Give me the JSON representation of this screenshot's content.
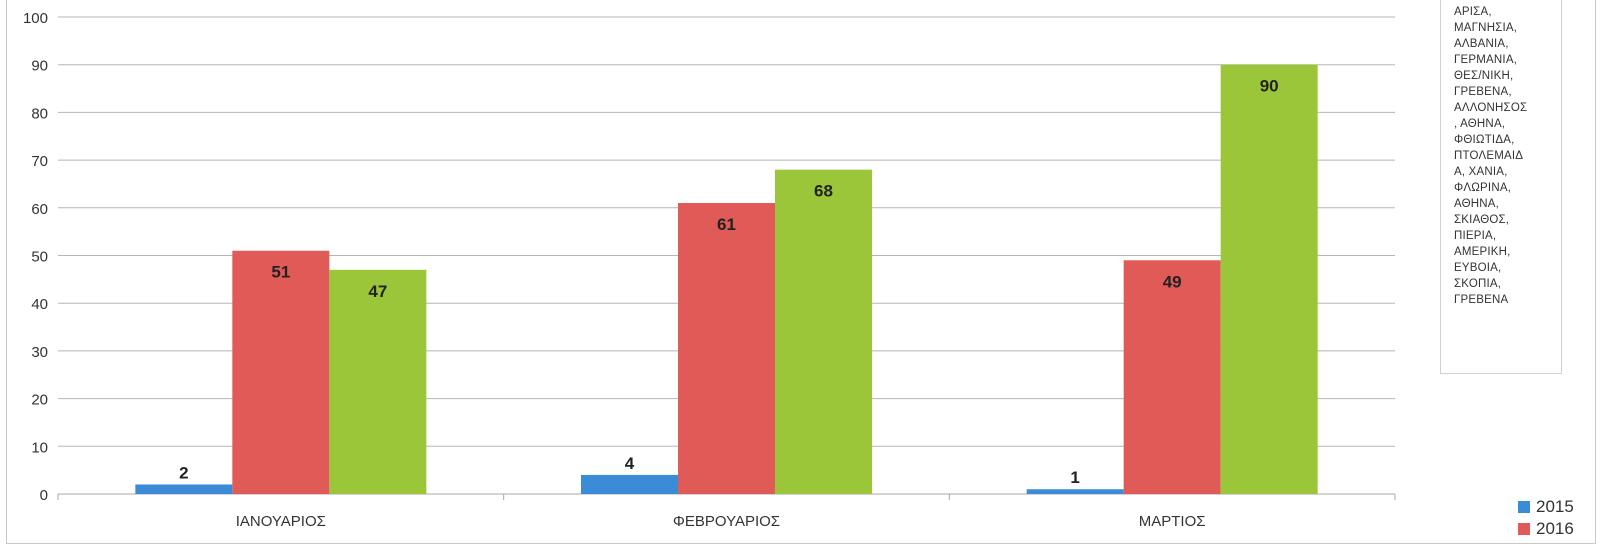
{
  "chart_data": {
    "type": "bar",
    "title": "",
    "categories": [
      "ΙΑΝΟΥΑΡΙΟΣ",
      "ΦΕΒΡΟΥΑΡΙΟΣ",
      "ΜΑΡΤΙΟΣ"
    ],
    "series": [
      {
        "name": "2015",
        "color": "#3b8bd6",
        "values": [
          2,
          4,
          1
        ]
      },
      {
        "name": "2016",
        "color": "#e05a57",
        "values": [
          51,
          61,
          49
        ]
      },
      {
        "name": "",
        "color": "#9cc63a",
        "values": [
          47,
          68,
          90
        ]
      }
    ],
    "y_ticks": [
      "0",
      "10",
      "20",
      "30",
      "40",
      "50",
      "60",
      "70",
      "80",
      "90",
      "100"
    ],
    "ylim": [
      0,
      100
    ],
    "grid": true,
    "legend_position": "bottom-right",
    "notes": "ΑΡΙΣΑ,\nΜΑΓΝΗΣΙΑ,\nΑΛΒΑΝΙΑ,\nΓΕΡΜΑΝΙΑ,\nΘΕΣ/ΝΙΚΗ,\nΓΡΕΒΕΝΑ,\nΑΛΛΟΝΗΣΟΣ\n, ΑΘΗΝΑ,\nΦΘΙΩΤΙΔΑ,\nΠΤΟΛΕΜΑΙΔ\nΑ, ΧΑΝΙΑ,\nΦΛΩΡΙΝΑ,\nΑΘΗΝΑ,\nΣΚΙΑΘΟΣ,\nΠΙΕΡΙΑ,\nΑΜΕΡΙΚΗ,\nΕΥΒΟΙΑ,\nΣΚΟΠΙΑ,\nΓΡΕΒΕΝΑ"
  }
}
